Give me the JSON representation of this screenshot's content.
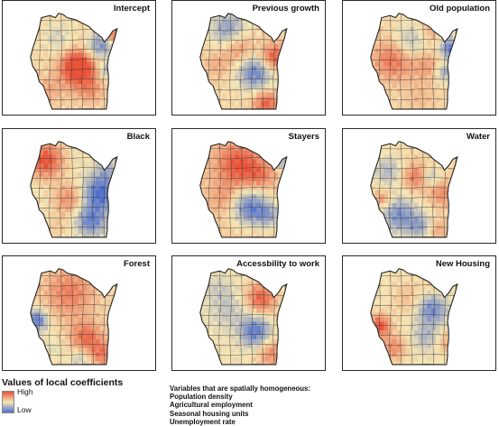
{
  "panels": [
    {
      "title": "Intercept",
      "pattern": "intercept"
    },
    {
      "title": "Previous growth",
      "pattern": "previous"
    },
    {
      "title": "Old population",
      "pattern": "oldpop"
    },
    {
      "title": "Black",
      "pattern": "black"
    },
    {
      "title": "Stayers",
      "pattern": "stayers"
    },
    {
      "title": "Water",
      "pattern": "water"
    },
    {
      "title": "Forest",
      "pattern": "forest"
    },
    {
      "title": "Accessbility to work",
      "pattern": "access"
    },
    {
      "title": "New Housing",
      "pattern": "housing"
    }
  ],
  "legend": {
    "title": "Values of local coefficients",
    "high_label": "High",
    "low_label": "Low",
    "colors": {
      "high": "#e8533a",
      "mid": "#f6e7b5",
      "low": "#4d6fcf"
    }
  },
  "homogeneous": {
    "heading": "Variables that are spatially homogeneous:",
    "items": [
      "Population density",
      "Agricultural employment",
      "Seasonal housing units",
      "Unemployment rate"
    ]
  }
}
